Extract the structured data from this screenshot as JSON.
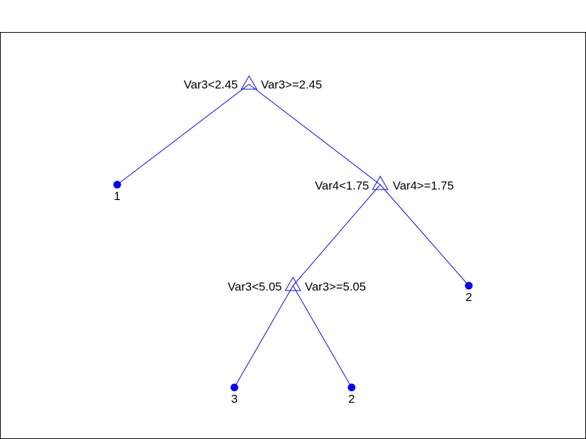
{
  "colors": {
    "tree": "#0000ff",
    "text": "#000000",
    "axes": "#000000",
    "background": "#ffffff"
  },
  "tree": {
    "root": {
      "left_rule": "Var3<2.45",
      "right_rule": "Var3>=2.45",
      "left": {
        "leaf": "1"
      },
      "right": {
        "left_rule": "Var4<1.75",
        "right_rule": "Var4>=1.75",
        "left": {
          "left_rule": "Var3<5.05",
          "right_rule": "Var3>=5.05",
          "left": {
            "leaf": "3"
          },
          "right": {
            "leaf": "2"
          }
        },
        "right": {
          "leaf": "2"
        }
      }
    }
  }
}
